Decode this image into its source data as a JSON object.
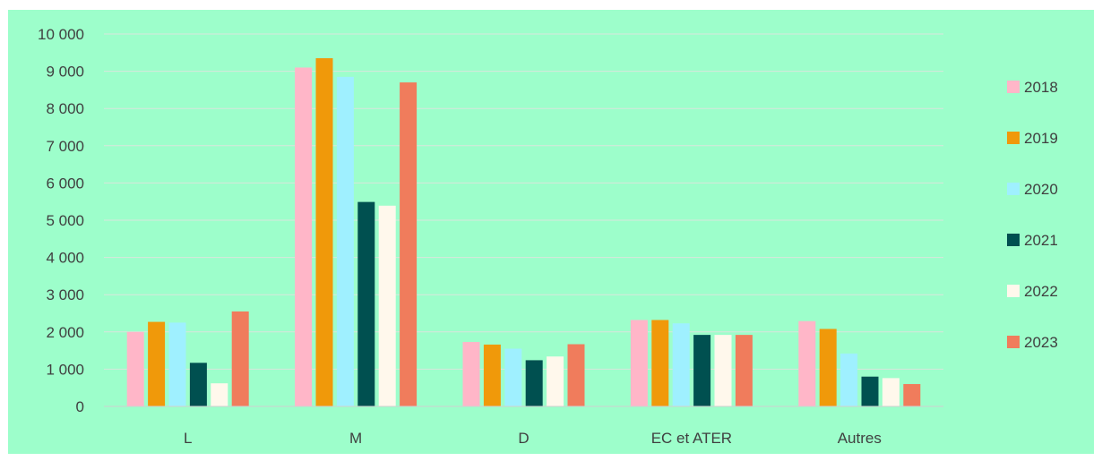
{
  "chart_data": {
    "type": "bar",
    "categories": [
      "L",
      "M",
      "D",
      "EC et ATER",
      "Autres"
    ],
    "ylim": [
      0,
      10000
    ],
    "yticks": [
      0,
      1000,
      2000,
      3000,
      4000,
      5000,
      6000,
      7000,
      8000,
      9000,
      10000
    ],
    "ytick_labels": [
      "0",
      "1 000",
      "2 000",
      "3 000",
      "4 000",
      "5 000",
      "6 000",
      "7 000",
      "8 000",
      "9 000",
      "10 000"
    ],
    "grid": true,
    "legend_position": "right",
    "series": [
      {
        "name": "2018",
        "color": "#ffb6c8",
        "values": [
          2000,
          9100,
          1730,
          2320,
          2290
        ]
      },
      {
        "name": "2019",
        "color": "#f0990a",
        "values": [
          2270,
          9350,
          1660,
          2320,
          2080
        ]
      },
      {
        "name": "2020",
        "color": "#9ff0ff",
        "values": [
          2250,
          8850,
          1550,
          2230,
          1420
        ]
      },
      {
        "name": "2021",
        "color": "#005050",
        "values": [
          1170,
          5490,
          1240,
          1920,
          800
        ]
      },
      {
        "name": "2022",
        "color": "#fff8ec",
        "values": [
          620,
          5390,
          1340,
          1920,
          760
        ]
      },
      {
        "name": "2023",
        "color": "#f07c5c",
        "values": [
          2550,
          8700,
          1670,
          1920,
          600
        ]
      }
    ]
  }
}
